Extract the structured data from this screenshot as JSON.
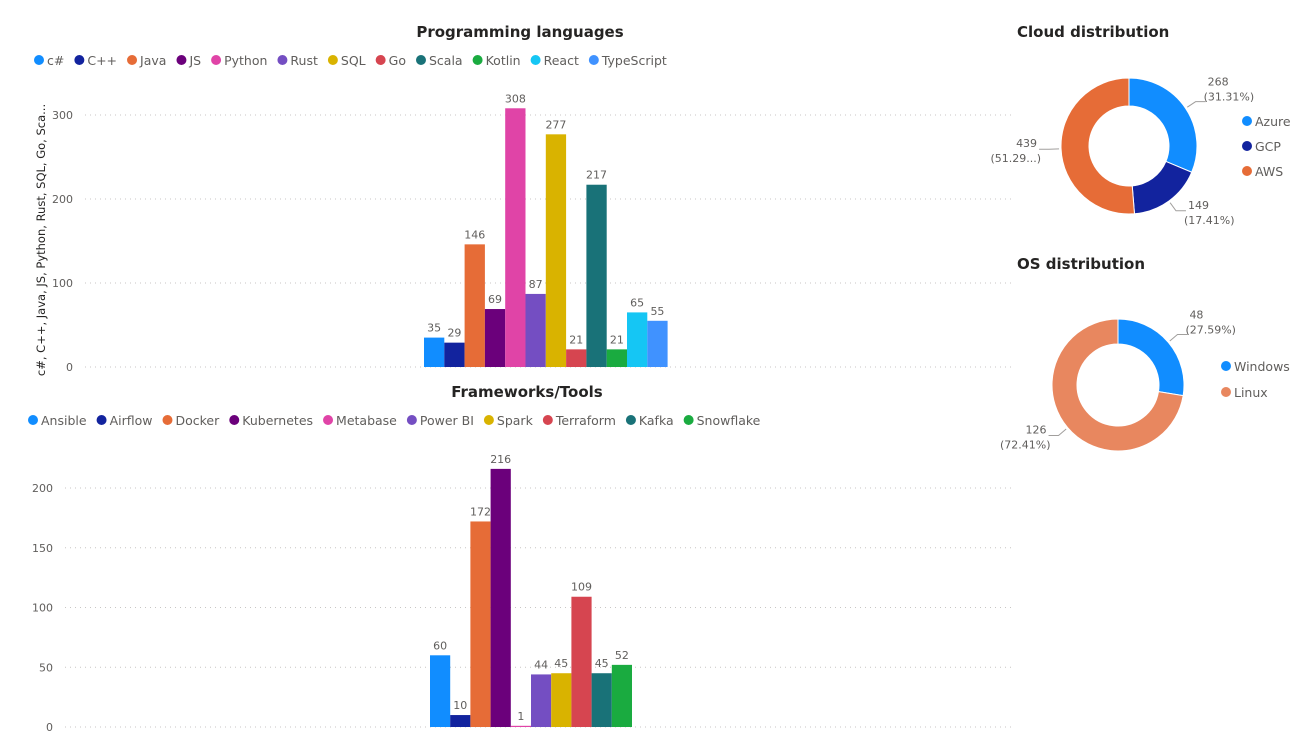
{
  "charts": [
    {
      "id": "programming",
      "chart_data": {
        "type": "bar",
        "title": "Programming languages",
        "ylabel": "c#, C++, Java, JS, Python, Rust, SQL, Go, Sca...",
        "xlabel": "",
        "ylim": [
          0,
          330
        ],
        "yticks": [
          0,
          100,
          200,
          300
        ],
        "grid": true,
        "legend_position": "top-left",
        "series": [
          {
            "name": "c#",
            "value": 35,
            "color": "#118dff"
          },
          {
            "name": "C++",
            "value": 29,
            "color": "#12239e"
          },
          {
            "name": "Java",
            "value": 146,
            "color": "#e66c37"
          },
          {
            "name": "JS",
            "value": 69,
            "color": "#6b007b"
          },
          {
            "name": "Python",
            "value": 308,
            "color": "#e044a7"
          },
          {
            "name": "Rust",
            "value": 87,
            "color": "#744ec2"
          },
          {
            "name": "SQL",
            "value": 277,
            "color": "#d9b300"
          },
          {
            "name": "Go",
            "value": 21,
            "color": "#d64550"
          },
          {
            "name": "Scala",
            "value": 217,
            "color": "#197278"
          },
          {
            "name": "Kotlin",
            "value": 21,
            "color": "#1aab40"
          },
          {
            "name": "React",
            "value": 65,
            "color": "#15c6f4"
          },
          {
            "name": "TypeScript",
            "value": 55,
            "color": "#4092ff"
          }
        ]
      }
    },
    {
      "id": "frameworks",
      "chart_data": {
        "type": "bar",
        "title": "Frameworks/Tools",
        "ylabel": "",
        "xlabel": "",
        "ylim": [
          0,
          230
        ],
        "yticks": [
          0,
          50,
          100,
          150,
          200
        ],
        "grid": true,
        "legend_position": "top-left",
        "series": [
          {
            "name": "Ansible",
            "value": 60,
            "color": "#118dff"
          },
          {
            "name": "Airflow",
            "value": 10,
            "color": "#12239e"
          },
          {
            "name": "Docker",
            "value": 172,
            "color": "#e66c37"
          },
          {
            "name": "Kubernetes",
            "value": 216,
            "color": "#6b007b"
          },
          {
            "name": "Metabase",
            "value": 1,
            "color": "#e044a7"
          },
          {
            "name": "Power BI",
            "value": 44,
            "color": "#744ec2"
          },
          {
            "name": "Spark",
            "value": 45,
            "color": "#d9b300"
          },
          {
            "name": "Terraform",
            "value": 109,
            "color": "#d64550"
          },
          {
            "name": "Kafka",
            "value": 45,
            "color": "#197278"
          },
          {
            "name": "Snowflake",
            "value": 52,
            "color": "#1aab40"
          }
        ]
      }
    },
    {
      "id": "cloud",
      "chart_data": {
        "type": "pie",
        "donut": true,
        "title": "Cloud distribution",
        "legend_position": "right",
        "slices": [
          {
            "name": "Azure",
            "value": 268,
            "pct_label": "(31.31%)",
            "color": "#118dff"
          },
          {
            "name": "GCP",
            "value": 149,
            "pct_label": "(17.41%)",
            "color": "#12239e"
          },
          {
            "name": "AWS",
            "value": 439,
            "pct_label": "(51.29...)",
            "color": "#e66c37"
          }
        ]
      }
    },
    {
      "id": "os",
      "chart_data": {
        "type": "pie",
        "donut": true,
        "title": "OS distribution",
        "legend_position": "right",
        "slices": [
          {
            "name": "Windows",
            "value": 48,
            "pct_label": "(27.59%)",
            "color": "#118dff"
          },
          {
            "name": "Linux",
            "value": 126,
            "pct_label": "(72.41%)",
            "color": "#e8875f"
          }
        ]
      }
    }
  ]
}
